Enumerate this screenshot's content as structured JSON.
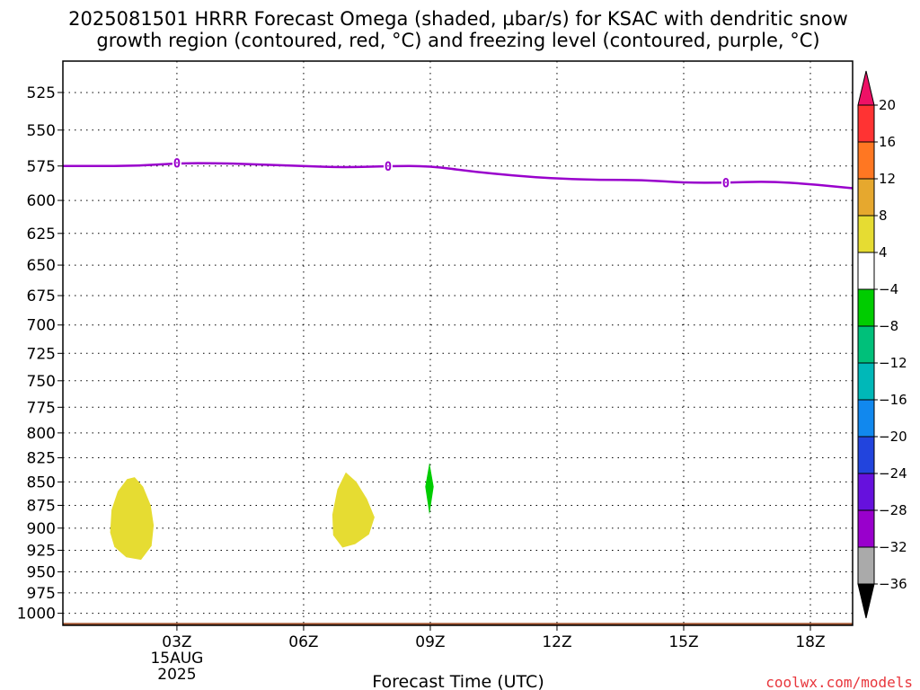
{
  "title": {
    "line1": "2025081501 HRRR Forecast Omega (shaded, µbar/s) for KSAC with dendritic snow",
    "line2": "growth region (contoured, red, °C) and freezing level (contoured, purple, °C)"
  },
  "credit": "coolwx.com/models",
  "chart_data": {
    "type": "time-height contour",
    "xlabel": "Forecast Time (UTC)",
    "x_range_hours": [
      0.3,
      19.0
    ],
    "x_ticks": [
      {
        "hour": 3,
        "label": "03Z",
        "sub": [
          "15AUG",
          "2025"
        ]
      },
      {
        "hour": 6,
        "label": "06Z"
      },
      {
        "hour": 9,
        "label": "09Z"
      },
      {
        "hour": 12,
        "label": "12Z"
      },
      {
        "hour": 15,
        "label": "15Z"
      },
      {
        "hour": 18,
        "label": "18Z"
      }
    ],
    "y_range_hpa": [
      505,
      1015
    ],
    "y_scale": "log-pressure (inverted)",
    "y_ticks": [
      525,
      550,
      575,
      600,
      625,
      650,
      675,
      700,
      725,
      750,
      775,
      800,
      825,
      850,
      875,
      900,
      925,
      950,
      975,
      1000
    ],
    "grid": "dotted",
    "freezing_level": {
      "color": "#9900cc",
      "contour_label": "0",
      "points": [
        [
          0.3,
          575
        ],
        [
          1,
          575
        ],
        [
          2,
          575
        ],
        [
          3,
          573
        ],
        [
          4,
          573
        ],
        [
          5,
          574
        ],
        [
          6,
          575
        ],
        [
          7,
          576
        ],
        [
          8,
          575
        ],
        [
          9,
          575
        ],
        [
          10,
          579
        ],
        [
          11,
          582
        ],
        [
          12,
          584
        ],
        [
          13,
          585
        ],
        [
          14,
          585
        ],
        [
          15,
          587
        ],
        [
          16,
          587
        ],
        [
          17,
          586
        ],
        [
          18,
          588
        ],
        [
          19,
          591
        ]
      ],
      "label_positions": [
        [
          3,
          573
        ],
        [
          8,
          575
        ],
        [
          16,
          587
        ]
      ]
    },
    "omega_regions": [
      {
        "value_range": "4 to 8",
        "color": "#e6dc32",
        "polygon": [
          [
            2.0,
            845
          ],
          [
            2.2,
            855
          ],
          [
            2.38,
            875
          ],
          [
            2.45,
            897
          ],
          [
            2.4,
            920
          ],
          [
            2.15,
            936
          ],
          [
            1.8,
            933
          ],
          [
            1.52,
            921
          ],
          [
            1.42,
            905
          ],
          [
            1.45,
            880
          ],
          [
            1.6,
            860
          ],
          [
            1.82,
            847
          ]
        ]
      },
      {
        "value_range": "4 to 8",
        "color": "#e6dc32",
        "polygon": [
          [
            7.0,
            840
          ],
          [
            7.25,
            850
          ],
          [
            7.5,
            868
          ],
          [
            7.68,
            888
          ],
          [
            7.55,
            907
          ],
          [
            7.22,
            918
          ],
          [
            6.92,
            922
          ],
          [
            6.7,
            908
          ],
          [
            6.68,
            885
          ],
          [
            6.8,
            858
          ]
        ]
      },
      {
        "value_range": "-8 to -4",
        "color": "#00cc00",
        "polygon": [
          [
            8.98,
            830
          ],
          [
            9.08,
            855
          ],
          [
            8.98,
            885
          ],
          [
            8.88,
            855
          ]
        ]
      }
    ],
    "terrain": {
      "color": "#a0522d",
      "top_hpa": 1012
    },
    "colorbar": {
      "labels": [
        "20",
        "16",
        "12",
        "8",
        "4",
        "-4",
        "-8",
        "-12",
        "-16",
        "-20",
        "-24",
        "-28",
        "-32",
        "-36"
      ],
      "colors": [
        "#ee1166",
        "#ff3333",
        "#ff7722",
        "#e6a82e",
        "#e6dc32",
        "#ffffff",
        "#00cc00",
        "#00c07a",
        "#00b8b8",
        "#1188ee",
        "#2244dd",
        "#6611dd",
        "#9900cc",
        "#aaaaaa",
        "#000000"
      ]
    }
  }
}
